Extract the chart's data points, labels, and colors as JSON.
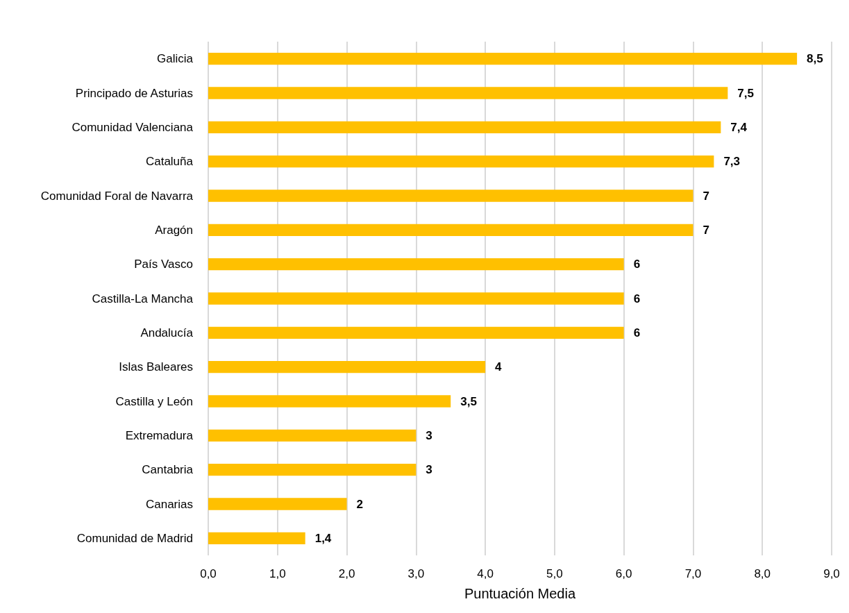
{
  "chart_data": {
    "type": "bar",
    "orientation": "horizontal",
    "xlabel": "Puntuación Media",
    "categories": [
      "Galicia",
      "Principado de Asturias",
      "Comunidad Valenciana",
      "Cataluña",
      "Comunidad Foral de Navarra",
      "Aragón",
      "País Vasco",
      "Castilla-La Mancha",
      "Andalucía",
      "Islas Baleares",
      "Castilla y León",
      "Extremadura",
      "Cantabria",
      "Canarias",
      "Comunidad de Madrid"
    ],
    "values": [
      8.5,
      7.5,
      7.4,
      7.3,
      7,
      7,
      6,
      6,
      6,
      4,
      3.5,
      3,
      3,
      2,
      1.4
    ],
    "value_labels": [
      "8,5",
      "7,5",
      "7,4",
      "7,3",
      "7",
      "7",
      "6",
      "6",
      "6",
      "4",
      "3,5",
      "3",
      "3",
      "2",
      "1,4"
    ],
    "color": "#ffc000",
    "xlim": [
      0,
      9
    ],
    "xticks": [
      {
        "value": 0,
        "label": "0,0"
      },
      {
        "value": 1,
        "label": "1,0"
      },
      {
        "value": 2,
        "label": "2,0"
      },
      {
        "value": 3,
        "label": "3,0"
      },
      {
        "value": 4,
        "label": "4,0"
      },
      {
        "value": 5,
        "label": "5,0"
      },
      {
        "value": 6,
        "label": "6,0"
      },
      {
        "value": 7,
        "label": "7,0"
      },
      {
        "value": 8,
        "label": "8,0"
      },
      {
        "value": 9,
        "label": "9,0"
      }
    ],
    "grid": "x"
  }
}
